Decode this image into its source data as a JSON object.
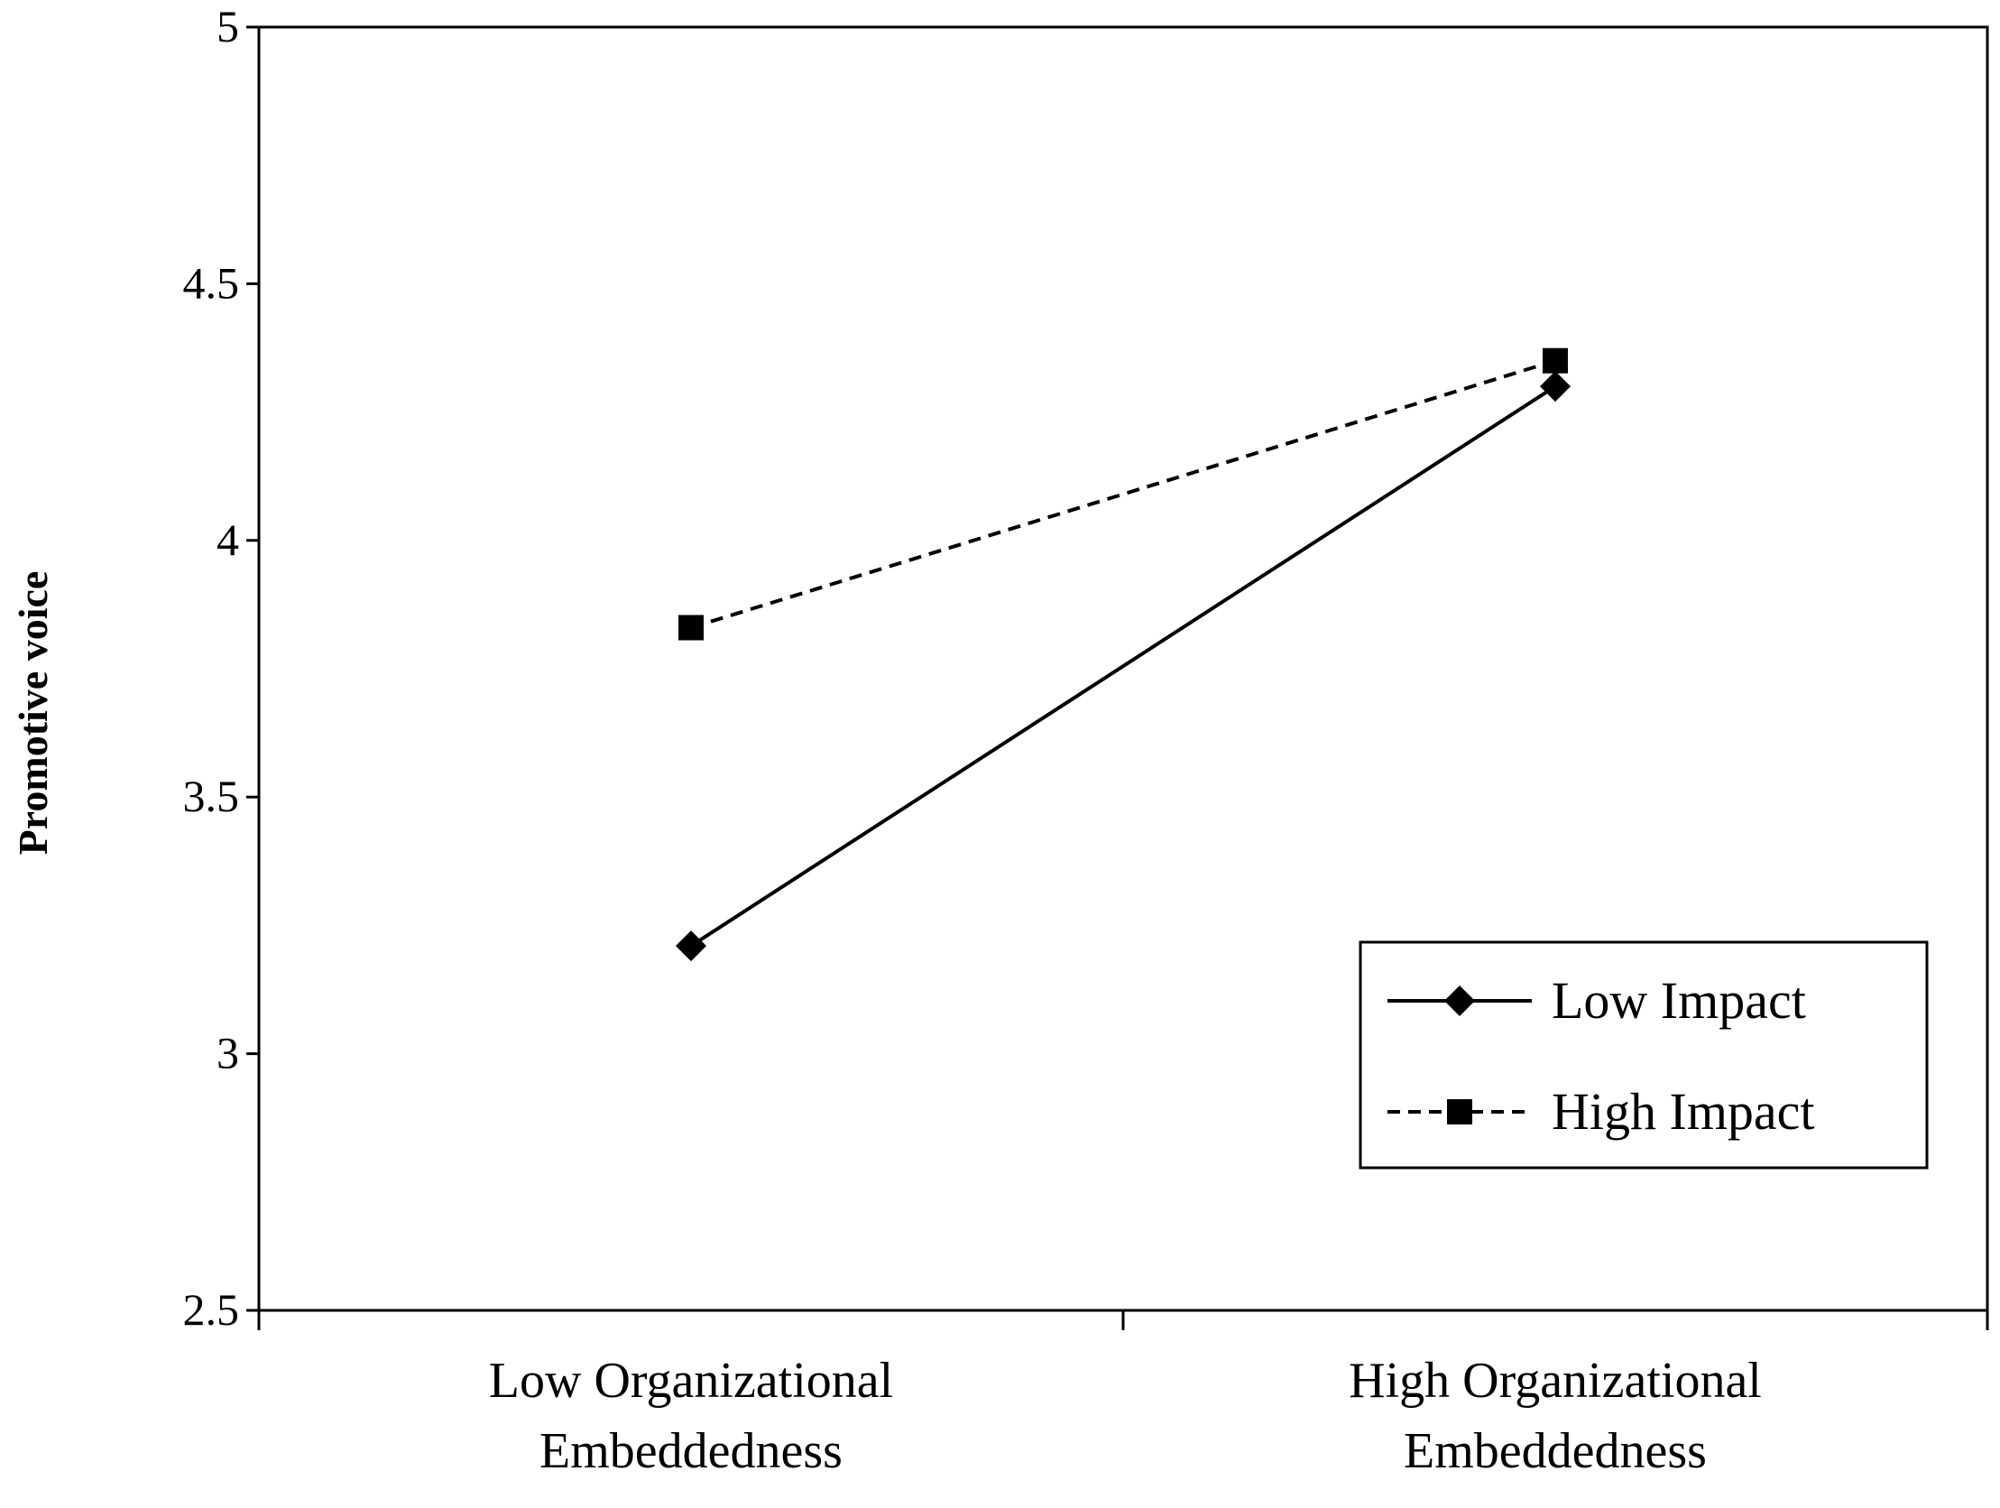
{
  "chart_data": {
    "type": "line",
    "title": "",
    "xlabel": "",
    "ylabel": "Promotive voice",
    "categories": [
      [
        "Low Organizational",
        "Embeddedness"
      ],
      [
        "High Organizational",
        "Embeddedness"
      ]
    ],
    "ylim": [
      2.5,
      5
    ],
    "yticks": [
      2.5,
      3,
      3.5,
      4,
      4.5,
      5
    ],
    "ytick_labels": [
      "2.5",
      "3",
      "3.5",
      "4",
      "4.5",
      "5"
    ],
    "series": [
      {
        "name": "Low Impact",
        "values": [
          3.21,
          4.3
        ],
        "marker": "diamond",
        "line": "solid"
      },
      {
        "name": "High Impact",
        "values": [
          3.83,
          4.35
        ],
        "marker": "square",
        "line": "dashed"
      }
    ],
    "legend": "bottom-right",
    "grid": false,
    "colors": {
      "line": "#000000",
      "background": "#ffffff"
    }
  }
}
